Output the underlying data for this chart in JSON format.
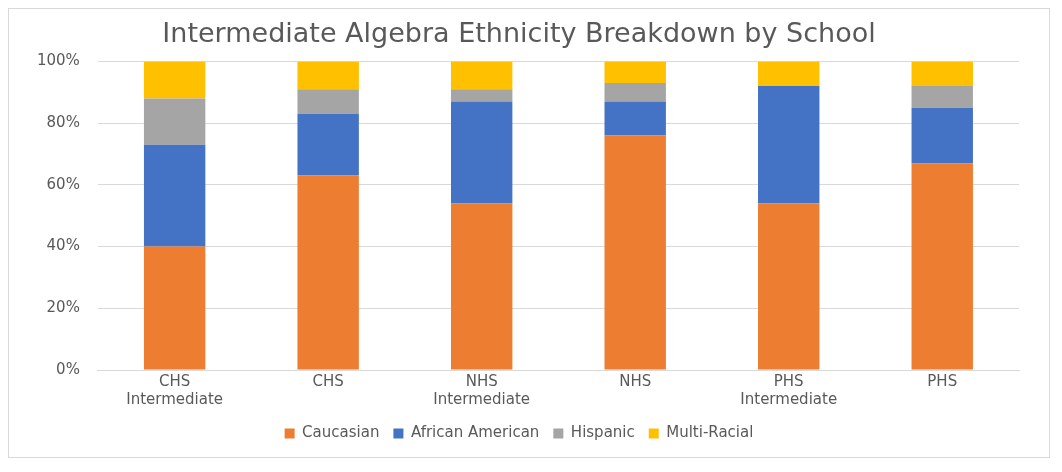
{
  "chart_data": {
    "type": "bar",
    "title": "Intermediate Algebra Ethnicity Breakdown by School",
    "categories": [
      "CHS\nIntermediate",
      "CHS",
      "NHS\nIntermediate",
      "NHS",
      "PHS\nIntermediate",
      "PHS"
    ],
    "stacked": true,
    "series": [
      {
        "name": "Caucasian",
        "color": "#ed7d31",
        "values": [
          40,
          63,
          54,
          76,
          54,
          67
        ]
      },
      {
        "name": "African American",
        "color": "#4472c4",
        "values": [
          33,
          20,
          33,
          11,
          38,
          18
        ]
      },
      {
        "name": "Hispanic",
        "color": "#a5a5a5",
        "values": [
          15,
          8,
          4,
          6,
          0,
          7
        ]
      },
      {
        "name": "Multi-Racial",
        "color": "#ffc000",
        "values": [
          12,
          9,
          9,
          7,
          8,
          8
        ]
      }
    ],
    "ylim": [
      0,
      100
    ],
    "yticks": [
      {
        "value": 0,
        "label": "0%"
      },
      {
        "value": 20,
        "label": "20%"
      },
      {
        "value": 40,
        "label": "40%"
      },
      {
        "value": 60,
        "label": "60%"
      },
      {
        "value": 80,
        "label": "80%"
      },
      {
        "value": 100,
        "label": "100%"
      }
    ],
    "grid": "y",
    "legend": "bottom"
  }
}
